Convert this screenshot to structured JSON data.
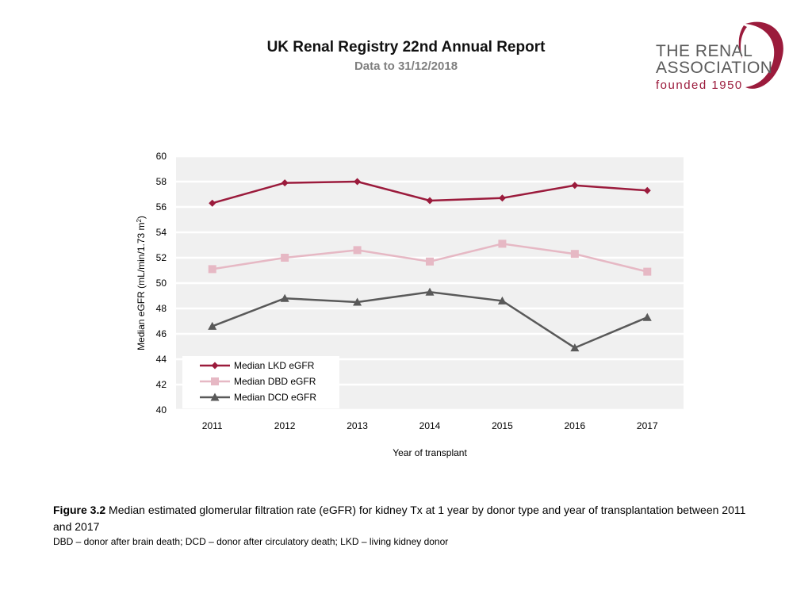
{
  "header": {
    "title": "UK Renal Registry 22nd Annual Report",
    "subtitle": "Data to 31/12/2018"
  },
  "logo": {
    "line1": "THE RENAL",
    "line2": "ASSOCIATION",
    "line3": "founded 1950",
    "color": "#9b1b3c"
  },
  "chart_data": {
    "type": "line",
    "categories": [
      "2011",
      "2012",
      "2013",
      "2014",
      "2015",
      "2016",
      "2017"
    ],
    "series": [
      {
        "name": "Median LKD eGFR",
        "values": [
          56.3,
          57.9,
          58.0,
          56.5,
          56.7,
          57.7,
          57.3
        ],
        "color": "#9b1b3c",
        "marker": "diamond"
      },
      {
        "name": "Median DBD eGFR",
        "values": [
          51.1,
          52.0,
          52.6,
          51.7,
          53.1,
          52.3,
          50.9
        ],
        "color": "#e6b8c4",
        "marker": "square"
      },
      {
        "name": "Median DCD eGFR",
        "values": [
          46.6,
          48.8,
          48.5,
          49.3,
          48.6,
          44.9,
          47.3
        ],
        "color": "#595959",
        "marker": "triangle"
      }
    ],
    "ylim": [
      40,
      60
    ],
    "yticks": [
      40,
      42,
      44,
      46,
      48,
      50,
      52,
      54,
      56,
      58,
      60
    ],
    "xlabel": "Year of transplant",
    "ylabel": "Median eGFR (mL/min/1.73 m",
    "ylabel_sup": "2",
    "ylabel_close": ")",
    "legend_position": "bottom-left",
    "grid": true
  },
  "caption": {
    "label": "Figure 3.2",
    "text": " Median estimated glomerular filtration rate (eGFR) for kidney Tx at 1 year by donor type and year of transplantation between 2011 and 2017"
  },
  "footnote": "DBD – donor after brain death; DCD – donor after circulatory death; LKD – living kidney donor"
}
